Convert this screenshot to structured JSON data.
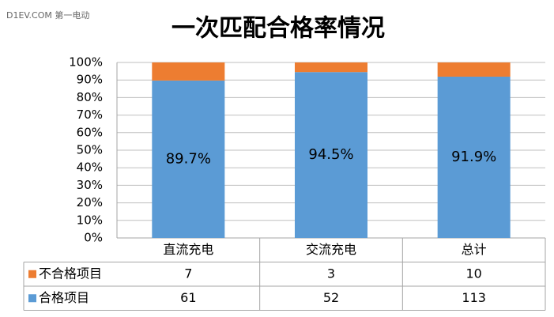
{
  "chart_data": {
    "type": "bar",
    "stacked": true,
    "title": "一次匹配合格率情况",
    "watermark": "D1EV.COM 第一电动",
    "categories": [
      "直流充电",
      "交流充电",
      "总计"
    ],
    "series": [
      {
        "name": "不合格项目",
        "color": "#ed7d31",
        "values": [
          10.3,
          5.5,
          8.1
        ],
        "table_values": [
          7,
          3,
          10
        ]
      },
      {
        "name": "合格项目",
        "color": "#5b9bd5",
        "values": [
          89.7,
          94.5,
          91.9
        ],
        "value_labels": [
          "89.7%",
          "94.5%",
          "91.9%"
        ],
        "table_values": [
          61,
          52,
          113
        ]
      }
    ],
    "ylim": [
      0,
      100
    ],
    "yticks": [
      {
        "value": 0,
        "label": "0%"
      },
      {
        "value": 10,
        "label": "10%"
      },
      {
        "value": 20,
        "label": "20%"
      },
      {
        "value": 30,
        "label": "30%"
      },
      {
        "value": 40,
        "label": "40%"
      },
      {
        "value": 50,
        "label": "50%"
      },
      {
        "value": 60,
        "label": "60%"
      },
      {
        "value": 70,
        "label": "70%"
      },
      {
        "value": 80,
        "label": "80%"
      },
      {
        "value": 90,
        "label": "90%"
      },
      {
        "value": 100,
        "label": "100%"
      }
    ],
    "grid": true
  }
}
